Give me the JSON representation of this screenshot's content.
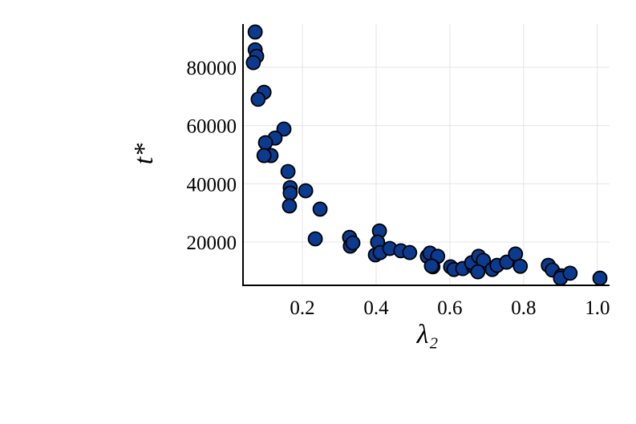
{
  "chart_data": {
    "type": "scatter",
    "x_label": "λ₂",
    "y_label": "t*",
    "color": "#0b3a8f",
    "edge_color": "#000000",
    "grid": true,
    "xlim": [
      0.039,
      1.033
    ],
    "ylim": [
      5144,
      94830
    ],
    "xticks": [
      {
        "value": 0.2,
        "label": "0.2"
      },
      {
        "value": 0.4,
        "label": "0.4"
      },
      {
        "value": 0.6,
        "label": "0.6"
      },
      {
        "value": 0.8,
        "label": "0.8"
      },
      {
        "value": 1.0,
        "label": "1.0"
      }
    ],
    "yticks": [
      20000,
      40000,
      60000,
      80000
    ],
    "x": [
      0.072,
      0.072,
      0.076,
      0.067,
      0.096,
      0.08,
      0.15,
      0.126,
      0.1,
      0.115,
      0.096,
      0.161,
      0.167,
      0.167,
      0.209,
      0.165,
      0.248,
      0.235,
      0.328,
      0.33,
      0.337,
      0.409,
      0.404,
      0.398,
      0.411,
      0.437,
      0.467,
      0.491,
      0.539,
      0.546,
      0.567,
      0.554,
      0.55,
      0.602,
      0.611,
      0.635,
      0.663,
      0.659,
      0.678,
      0.691,
      0.676,
      0.715,
      0.728,
      0.754,
      0.778,
      0.791,
      0.867,
      0.878,
      0.902,
      0.9,
      0.926,
      1.007
    ],
    "values": [
      92100,
      86000,
      83800,
      81600,
      71400,
      69000,
      58800,
      55700,
      54100,
      49700,
      49700,
      44200,
      38700,
      36800,
      37600,
      32400,
      31300,
      21100,
      21600,
      18600,
      19700,
      23800,
      20000,
      15600,
      16400,
      17800,
      17000,
      16400,
      15100,
      16200,
      15100,
      11500,
      11800,
      11500,
      10600,
      10900,
      11700,
      12900,
      15100,
      13700,
      9800,
      10600,
      12000,
      13100,
      15900,
      11700,
      12000,
      10400,
      8400,
      7600,
      9300,
      7600
    ]
  }
}
